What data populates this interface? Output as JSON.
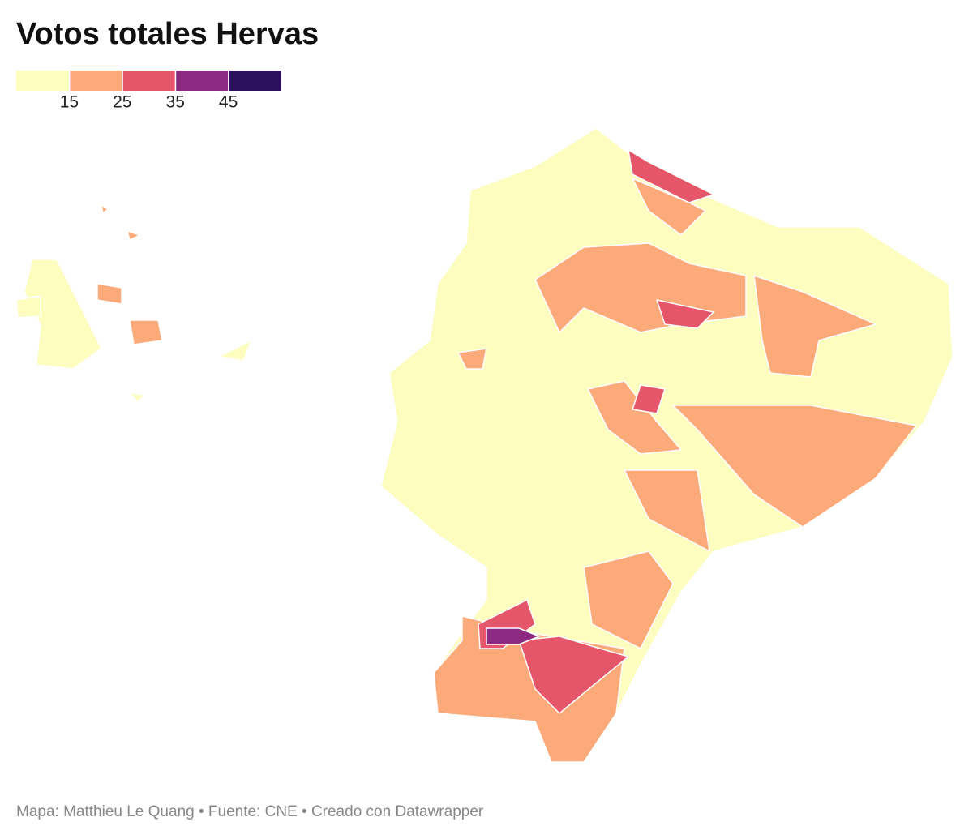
{
  "title": "Votos totales Hervas",
  "legend": {
    "colors": [
      "#fcfdbf",
      "#fdaa7a",
      "#e5566b",
      "#8c2981",
      "#2c115f"
    ],
    "ticks": [
      15,
      25,
      35,
      45
    ]
  },
  "footer": "Mapa: Matthieu Le Quang • Fuente: CNE • Creado con Datawrapper"
}
